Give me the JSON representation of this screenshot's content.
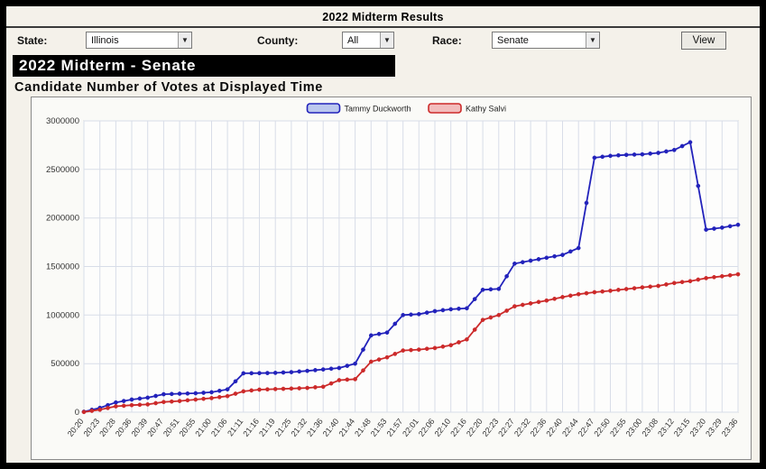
{
  "window": {
    "title": "2022 Midterm Results"
  },
  "controls": {
    "state": {
      "label": "State:",
      "value": "Illinois"
    },
    "county": {
      "label": "County:",
      "value": "All"
    },
    "race": {
      "label": "Race:",
      "value": "Senate"
    },
    "view_button": "View"
  },
  "heading": {
    "race_title": "2022 Midterm - Senate",
    "chart_title": "Candidate Number of Votes at Displayed Time"
  },
  "chart_data": {
    "type": "line",
    "title": "Candidate Number of Votes at Displayed Time",
    "xlabel": "",
    "ylabel": "",
    "ylim": [
      0,
      3000000
    ],
    "yticks": [
      0,
      500000,
      1000000,
      1500000,
      2000000,
      2500000,
      3000000
    ],
    "grid": true,
    "legend_position": "top-center",
    "x": [
      "20:20",
      "20:23",
      "20:28",
      "20:36",
      "20:39",
      "20:47",
      "20:51",
      "20:55",
      "21:00",
      "21:06",
      "21:11",
      "21:16",
      "21:19",
      "21:25",
      "21:32",
      "21:36",
      "21:40",
      "21:44",
      "21:48",
      "21:53",
      "21:57",
      "22:01",
      "22:06",
      "22:10",
      "22:16",
      "22:20",
      "22:23",
      "22:27",
      "22:32",
      "22:36",
      "22:40",
      "22:44",
      "22:47",
      "22:50",
      "22:55",
      "23:00",
      "23:08",
      "23:12",
      "23:15",
      "23:20",
      "23:29",
      "23:36"
    ],
    "series": [
      {
        "name": "Tammy Duckworth",
        "color": "#2222bb",
        "swatch_fill": "#bcc8ee",
        "values": [
          5000,
          45000,
          100000,
          130000,
          150000,
          185000,
          190000,
          195000,
          205000,
          235000,
          400000,
          402000,
          405000,
          412000,
          425000,
          440000,
          455000,
          500000,
          790000,
          820000,
          1000000,
          1010000,
          1040000,
          1060000,
          1070000,
          1260000,
          1270000,
          1530000,
          1560000,
          1590000,
          1620000,
          1690000,
          2620000,
          2640000,
          2650000,
          2655000,
          2670000,
          2700000,
          2780000,
          1880000,
          1900000,
          1930000
        ]
      },
      {
        "name": "Kathy Salvi",
        "color": "#cc2a2a",
        "swatch_fill": "#f2bdbd",
        "values": [
          2000,
          25000,
          60000,
          72000,
          80000,
          105000,
          115000,
          130000,
          145000,
          165000,
          215000,
          232000,
          238000,
          243000,
          250000,
          262000,
          330000,
          340000,
          520000,
          565000,
          635000,
          645000,
          660000,
          690000,
          750000,
          950000,
          1000000,
          1090000,
          1120000,
          1150000,
          1185000,
          1215000,
          1235000,
          1250000,
          1268000,
          1285000,
          1300000,
          1330000,
          1350000,
          1380000,
          1400000,
          1420000
        ]
      }
    ]
  }
}
